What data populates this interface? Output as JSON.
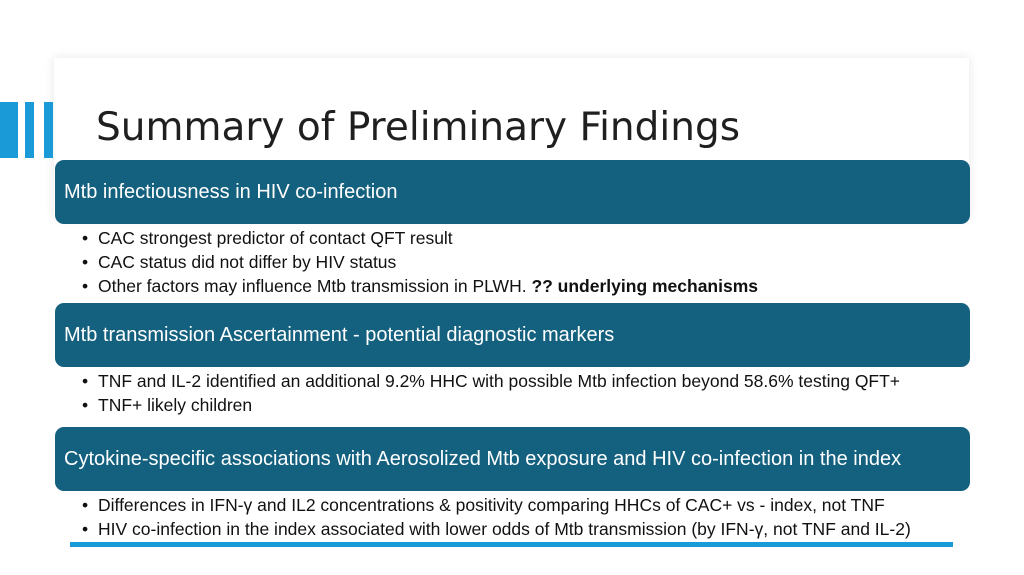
{
  "slide": {
    "title": "Summary of Preliminary Findings",
    "accent_color": "#1a9bd7",
    "header_color": "#14607f"
  },
  "sections": [
    {
      "header": "Mtb infectiousness in HIV co-infection",
      "bullets": [
        {
          "text": "CAC strongest predictor of contact QFT result",
          "bold": ""
        },
        {
          "text": "CAC status did not differ by HIV status",
          "bold": ""
        },
        {
          "text": "Other factors may influence Mtb transmission in PLWH. ",
          "bold": "?? underlying mechanisms"
        }
      ]
    },
    {
      "header": "Mtb transmission Ascertainment  - potential diagnostic markers",
      "bullets": [
        {
          "text": "TNF and IL-2 identified an additional 9.2% HHC with possible Mtb infection beyond 58.6% testing QFT+",
          "bold": ""
        },
        {
          "text": "TNF+ likely children",
          "bold": ""
        }
      ]
    },
    {
      "header": "Cytokine-specific associations with Aerosolized Mtb exposure and HIV co-infection in the index",
      "bullets": [
        {
          "text": "Differences in IFN-γ and IL2 concentrations & positivity comparing HHCs of CAC+ vs - index, not TNF",
          "bold": ""
        },
        {
          "text": "HIV co-infection in the index associated with lower odds of Mtb transmission (by IFN-γ, not TNF and IL-2)",
          "bold": ""
        }
      ]
    }
  ]
}
